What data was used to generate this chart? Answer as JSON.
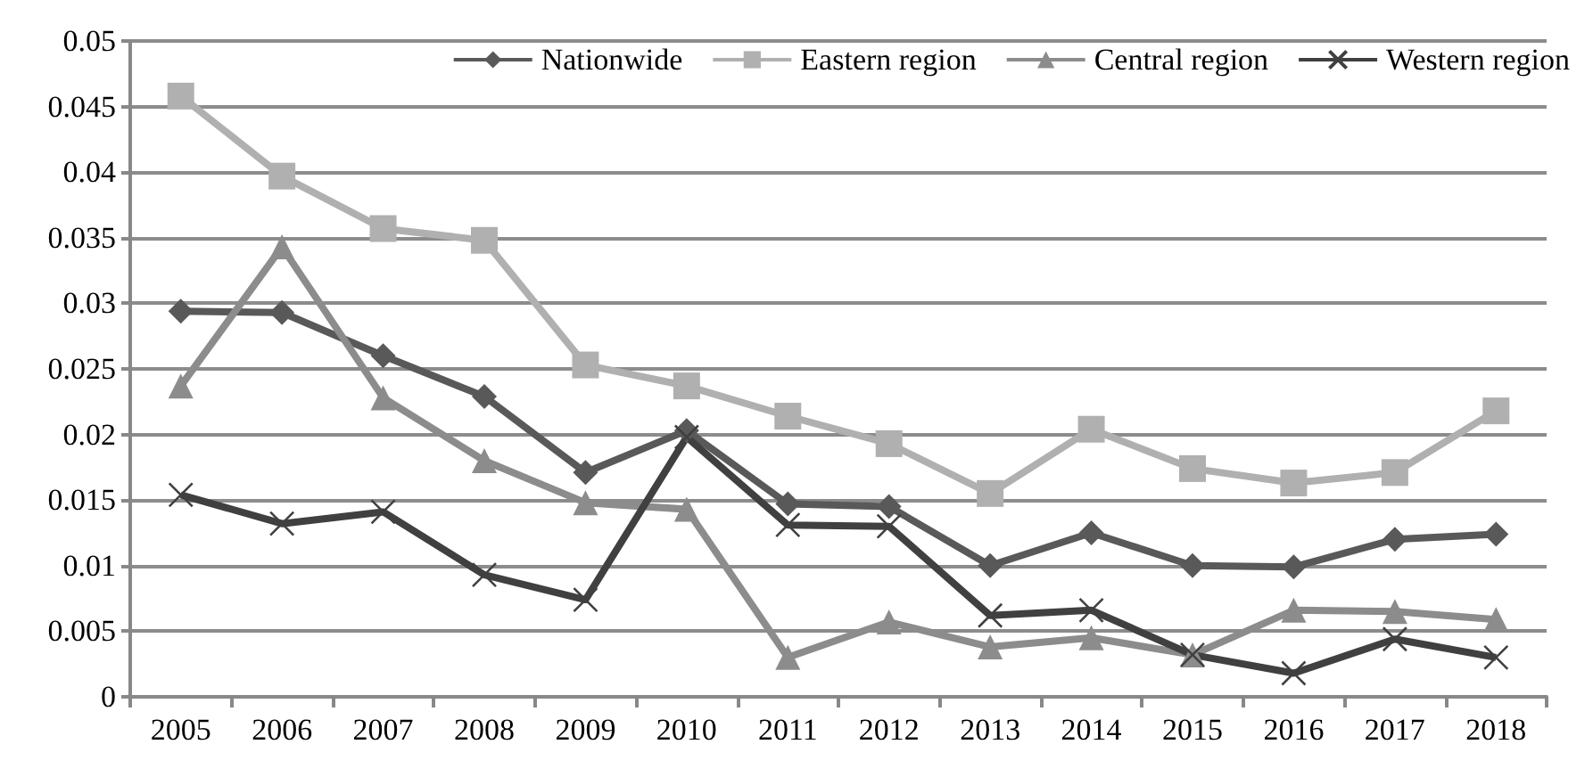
{
  "chart_data": {
    "type": "line",
    "categories": [
      "2005",
      "2006",
      "2007",
      "2008",
      "2009",
      "2010",
      "2011",
      "2012",
      "2013",
      "2014",
      "2015",
      "2016",
      "2017",
      "2018"
    ],
    "series": [
      {
        "name": "Nationwide",
        "color": "#595959",
        "marker": "diamond",
        "values": [
          0.0294,
          0.0293,
          0.026,
          0.0229,
          0.0171,
          0.0203,
          0.0147,
          0.0145,
          0.01,
          0.0125,
          0.01,
          0.0099,
          0.012,
          0.0124
        ]
      },
      {
        "name": "Eastern region",
        "color": "#b0b0b0",
        "marker": "square",
        "values": [
          0.0458,
          0.0397,
          0.0357,
          0.0348,
          0.0253,
          0.0237,
          0.0214,
          0.0193,
          0.0155,
          0.0204,
          0.0174,
          0.0163,
          0.0171,
          0.0218
        ]
      },
      {
        "name": "Central region",
        "color": "#8c8c8c",
        "marker": "triangle",
        "values": [
          0.0237,
          0.0343,
          0.0228,
          0.018,
          0.0148,
          0.0143,
          0.003,
          0.0057,
          0.0038,
          0.0045,
          0.0032,
          0.0066,
          0.0065,
          0.0059
        ]
      },
      {
        "name": "Western region",
        "color": "#404040",
        "marker": "cross",
        "values": [
          0.0154,
          0.0132,
          0.0141,
          0.0093,
          0.0074,
          0.0198,
          0.0131,
          0.013,
          0.0062,
          0.0066,
          0.0032,
          0.0018,
          0.0044,
          0.003
        ]
      }
    ],
    "ylim": [
      0,
      0.05
    ],
    "yticks": [
      0,
      0.005,
      0.01,
      0.015,
      0.02,
      0.025,
      0.03,
      0.035,
      0.04,
      0.045,
      0.05
    ],
    "grid": "y",
    "legend": "top",
    "line_style": "solid"
  }
}
